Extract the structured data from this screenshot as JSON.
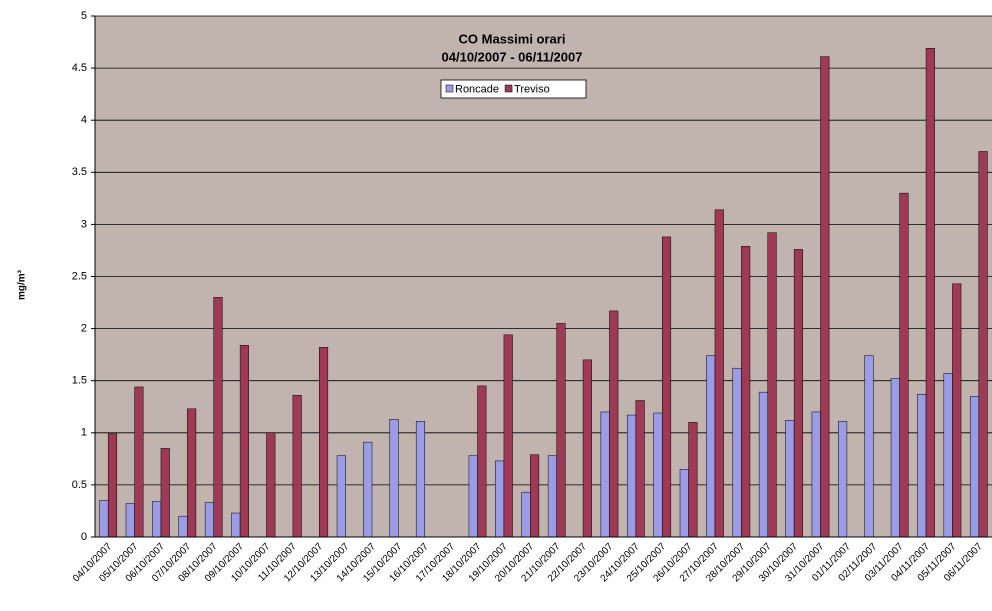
{
  "chart_data": {
    "type": "bar",
    "title": "CO Massimi orari",
    "subtitle": "04/10/2007 - 06/11/2007",
    "y_label": "mg/m³",
    "categories": [
      "04/10/2007",
      "05/10/2007",
      "06/10/2007",
      "07/10/2007",
      "08/10/2007",
      "09/10/2007",
      "10/10/2007",
      "11/10/2007",
      "12/10/2007",
      "13/10/2007",
      "14/10/2007",
      "15/10/2007",
      "16/10/2007",
      "17/10/2007",
      "18/10/2007",
      "19/10/2007",
      "20/10/2007",
      "21/10/2007",
      "22/10/2007",
      "23/10/2007",
      "24/10/2007",
      "25/10/2007",
      "26/10/2007",
      "27/10/2007",
      "28/10/2007",
      "29/10/2007",
      "30/10/2007",
      "31/10/2007",
      "01/11/2007",
      "02/11/2007",
      "03/11/2007",
      "04/11/2007",
      "05/11/2007",
      "06/11/2007"
    ],
    "series": [
      {
        "name": "Roncade",
        "color": "#9b9be6",
        "values": [
          0.35,
          0.32,
          0.34,
          0.2,
          0.33,
          0.23,
          null,
          null,
          null,
          0.78,
          0.91,
          1.13,
          1.11,
          null,
          0.78,
          0.73,
          0.43,
          0.78,
          null,
          1.2,
          1.17,
          1.19,
          0.65,
          1.74,
          1.62,
          1.39,
          1.12,
          1.2,
          1.11,
          1.74,
          1.52,
          1.37,
          1.57,
          1.35
        ]
      },
      {
        "name": "Treviso",
        "color": "#9e3a56",
        "values": [
          0.99,
          1.44,
          0.85,
          1.23,
          2.3,
          1.84,
          1.0,
          1.36,
          1.82,
          null,
          null,
          null,
          null,
          null,
          1.45,
          1.94,
          0.79,
          2.05,
          1.7,
          2.17,
          1.31,
          2.88,
          1.1,
          3.14,
          2.79,
          2.92,
          2.76,
          4.61,
          null,
          null,
          3.3,
          4.69,
          2.43,
          3.7
        ]
      }
    ],
    "ylim": [
      0,
      5
    ],
    "yticks": [
      0,
      0.5,
      1,
      1.5,
      2,
      2.5,
      3,
      3.5,
      4,
      4.5,
      5
    ],
    "grid": true
  }
}
